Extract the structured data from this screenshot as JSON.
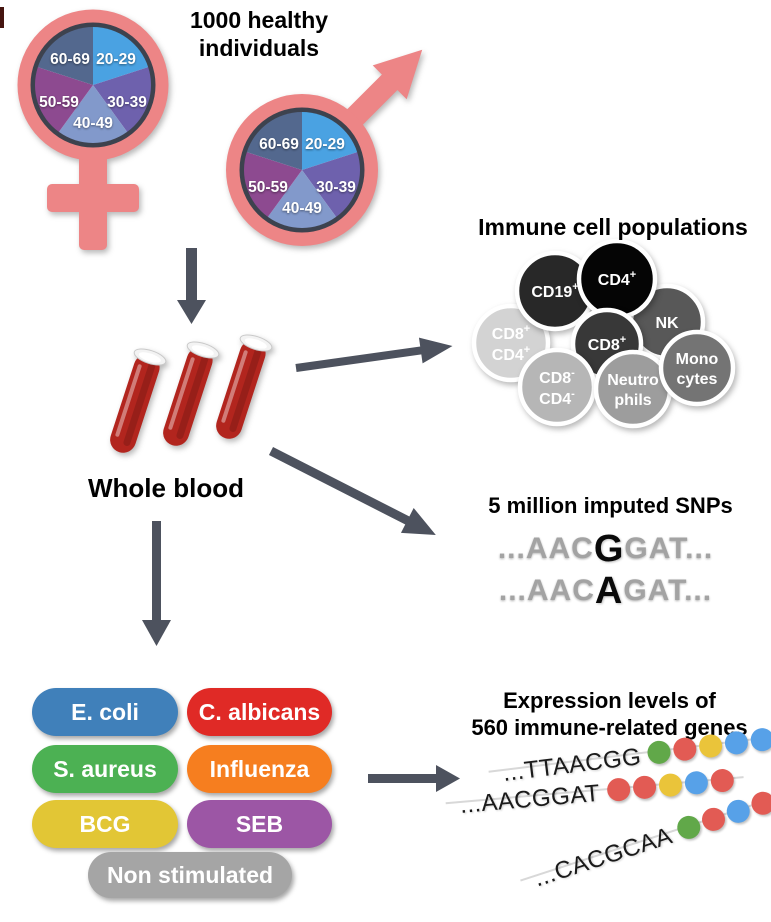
{
  "colors": {
    "symbol_pink": "#ed8586",
    "arrow_gray": "#4d525e",
    "pie_border": "#3d424e"
  },
  "cohort": {
    "title_line1": "1000 healthy",
    "title_line2": "individuals",
    "age_groups": [
      {
        "label": "20-29",
        "color": "#4aa2e2"
      },
      {
        "label": "30-39",
        "color": "#6e61ad"
      },
      {
        "label": "40-49",
        "color": "#8299cb"
      },
      {
        "label": "50-59",
        "color": "#8d4a90"
      },
      {
        "label": "60-69",
        "color": "#53688e"
      }
    ]
  },
  "blood": {
    "label": "Whole blood",
    "tube_color": "#b2251e"
  },
  "immune": {
    "title": "Immune cell populations",
    "cells": [
      {
        "l1": "CD8",
        "s1": "+",
        "l2": "CD4",
        "s2": "+",
        "color": "#d3d3d3"
      },
      {
        "l1": "CD19",
        "s1": "+",
        "l2": "",
        "s2": "",
        "color": "#282828"
      },
      {
        "l1": "NK",
        "s1": "",
        "l2": "",
        "s2": "",
        "color": "#585858"
      },
      {
        "l1": "CD4",
        "s1": "+",
        "l2": "",
        "s2": "",
        "color": "#050505"
      },
      {
        "l1": "CD8",
        "s1": "+",
        "l2": "",
        "s2": "",
        "color": "#383838"
      },
      {
        "l1": "CD8",
        "s1": "-",
        "l2": "CD4",
        "s2": "-",
        "color": "#b6b6b6"
      },
      {
        "l1": "Neutro",
        "s1": "",
        "l2": "phils",
        "s2": "",
        "color": "#9d9d9d"
      },
      {
        "l1": "Mono",
        "s1": "",
        "l2": "cytes",
        "s2": "",
        "color": "#747474"
      }
    ]
  },
  "snps": {
    "title": "5 million imputed SNPs",
    "rows": [
      {
        "pre": "...AAC",
        "var": "G",
        "post": "GAT..."
      },
      {
        "pre": "...AAC",
        "var": "A",
        "post": "GAT..."
      }
    ]
  },
  "stimuli": {
    "items": [
      {
        "label": "E. coli",
        "color": "#4080ba"
      },
      {
        "label": "C. albicans",
        "color": "#e02a26"
      },
      {
        "label": "S. aureus",
        "color": "#4cb153"
      },
      {
        "label": "Influenza",
        "color": "#f67e1f"
      },
      {
        "label": "BCG",
        "color": "#e2c635"
      },
      {
        "label": "SEB",
        "color": "#9c56a5"
      },
      {
        "label": "Non stimulated",
        "color": "#a5a5a5"
      }
    ]
  },
  "expression": {
    "title_line1": "Expression levels of",
    "title_line2": "560 immune-related genes",
    "dot_colors": {
      "green": "#61a849",
      "red": "#e25b54",
      "yellow": "#eac43a",
      "blue": "#57a1e8"
    },
    "genes": [
      {
        "seq": "...TTAACGG",
        "dots": [
          "green",
          "red",
          "yellow",
          "blue",
          "blue"
        ]
      },
      {
        "seq": "...AACGGAT",
        "dots": [
          "red",
          "red",
          "yellow",
          "blue",
          "red"
        ]
      },
      {
        "seq": "...CACGCAA",
        "dots": [
          "green",
          "red",
          "blue",
          "red",
          "red"
        ]
      }
    ]
  }
}
